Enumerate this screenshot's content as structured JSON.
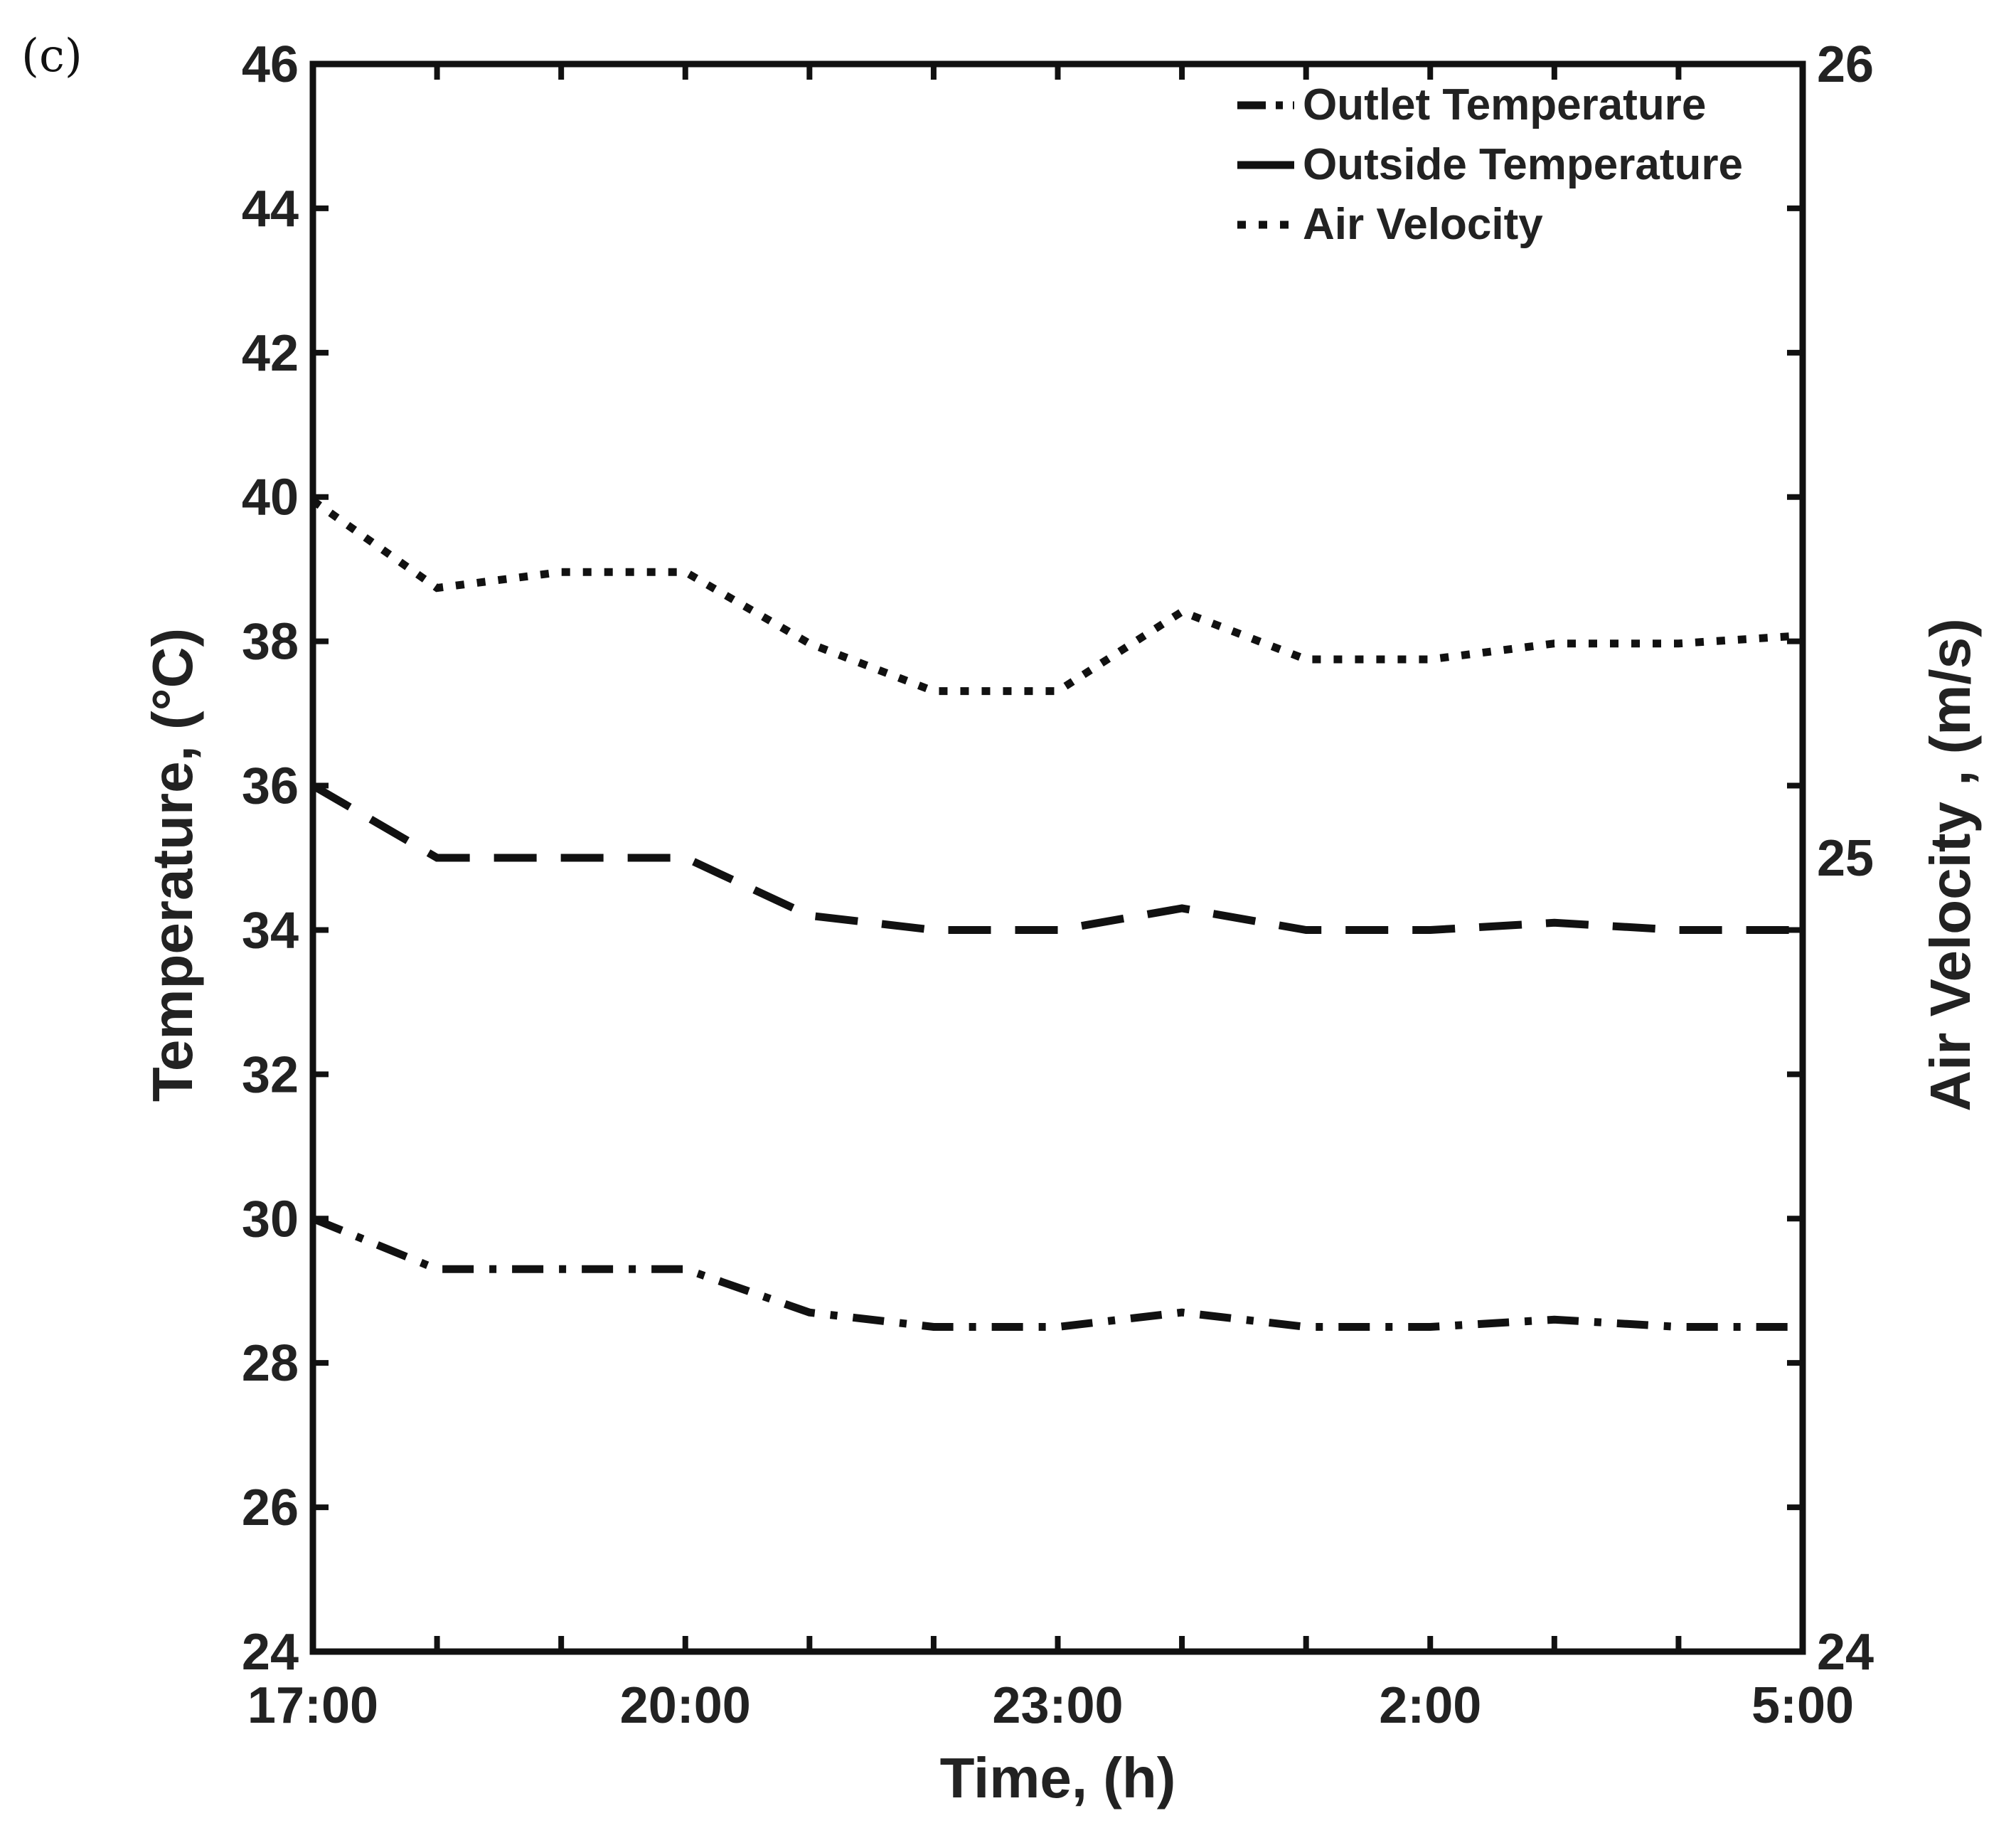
{
  "panel_label": "(c)",
  "chart_data": {
    "type": "line",
    "title": "",
    "xlabel": "Time, (h)",
    "ylabel": "Temperature, (°C)",
    "y2label": "Air Velocity , (m/s)",
    "x_tick_labels": [
      "17:00",
      "20:00",
      "23:00",
      "2:00",
      "5:00"
    ],
    "x_tick_positions_hours": [
      0,
      3,
      6,
      9,
      12
    ],
    "x_range_hours": [
      0,
      12
    ],
    "ylim": [
      24,
      46
    ],
    "yticks": [
      24,
      26,
      28,
      30,
      32,
      34,
      36,
      38,
      40,
      42,
      44,
      46
    ],
    "y2lim": [
      24,
      26
    ],
    "y2ticks": [
      24,
      25,
      26
    ],
    "legend_location": "top-right",
    "x_hours": [
      0,
      1,
      2,
      3,
      4,
      5,
      6,
      7,
      8,
      9,
      10,
      11,
      12
    ],
    "series": [
      {
        "name": "Outlet Temperature",
        "axis": "left",
        "style": "dashdot",
        "values": [
          30.0,
          29.3,
          29.3,
          29.3,
          28.7,
          28.5,
          28.5,
          28.7,
          28.5,
          28.5,
          28.6,
          28.5,
          28.5
        ]
      },
      {
        "name": "Outside Temperature",
        "axis": "left",
        "style": "dashed",
        "values": [
          36.0,
          35.0,
          35.0,
          35.0,
          34.2,
          34.0,
          34.0,
          34.3,
          34.0,
          34.0,
          34.1,
          34.0,
          34.0
        ]
      },
      {
        "name": "Air Velocity",
        "axis": "right",
        "style": "dotted",
        "values": [
          25.45,
          25.34,
          25.36,
          25.36,
          25.27,
          25.21,
          25.21,
          25.31,
          25.25,
          25.25,
          25.27,
          25.27,
          25.28
        ]
      }
    ]
  }
}
